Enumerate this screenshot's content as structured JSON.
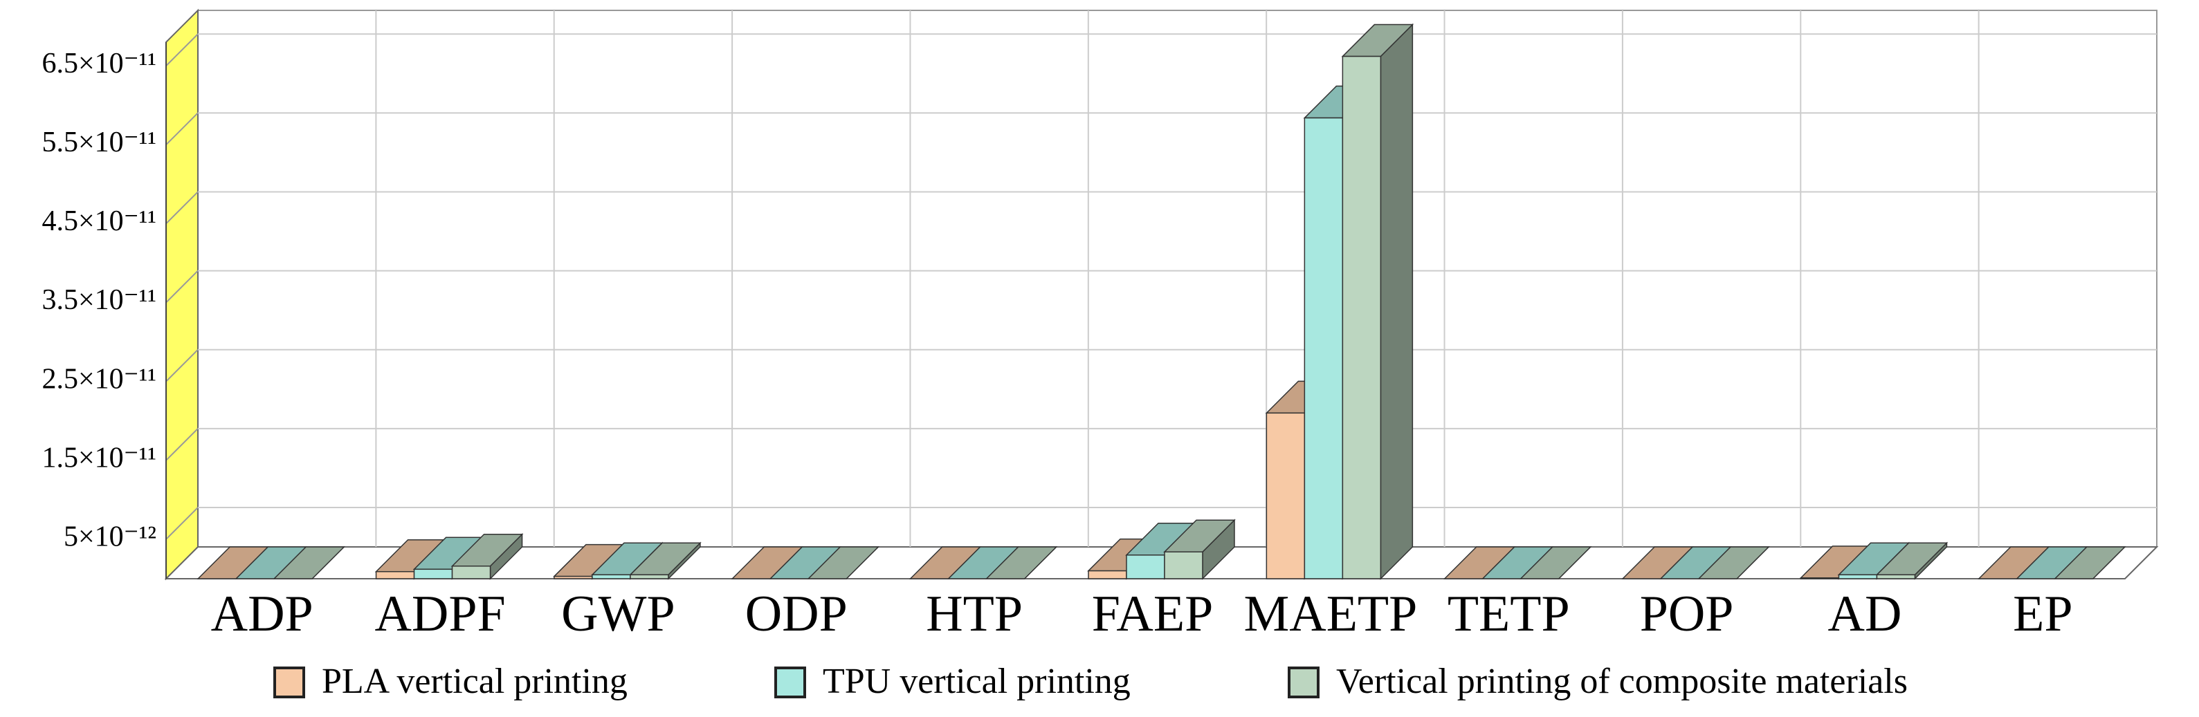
{
  "chart_data": {
    "type": "bar3d",
    "categories": [
      "ADP",
      "ADPF",
      "GWP",
      "ODP",
      "HTP",
      "FAEP",
      "MAETP",
      "TETP",
      "POP",
      "AD",
      "EP"
    ],
    "series": [
      {
        "name": "PLA vertical printing",
        "color": "#f7c9a5",
        "values": [
          0,
          9e-13,
          3e-13,
          0,
          0,
          1e-12,
          2.1e-11,
          0,
          0,
          1e-13,
          0
        ]
      },
      {
        "name": "TPU vertical printing",
        "color": "#a8e8e0",
        "values": [
          0,
          1.2e-12,
          5e-13,
          0,
          0,
          3e-12,
          5.84e-11,
          0,
          0,
          5e-13,
          0
        ]
      },
      {
        "name": "Vertical printing of composite materials",
        "color": "#bcd6c0",
        "values": [
          0,
          1.6e-12,
          5e-13,
          0,
          0,
          3.4e-12,
          6.62e-11,
          0,
          0,
          5e-13,
          0
        ]
      }
    ],
    "ylim": [
      0,
      6.8e-11
    ],
    "yticks": [
      {
        "value": 5e-12,
        "label": "5×10⁻¹²"
      },
      {
        "value": 1.5e-11,
        "label": "1.5×10⁻¹¹"
      },
      {
        "value": 2.5e-11,
        "label": "2.5×10⁻¹¹"
      },
      {
        "value": 3.5e-11,
        "label": "3.5×10⁻¹¹"
      },
      {
        "value": 4.5e-11,
        "label": "4.5×10⁻¹¹"
      },
      {
        "value": 5.5e-11,
        "label": "5.5×10⁻¹¹"
      },
      {
        "value": 6.5e-11,
        "label": "6.5×10⁻¹¹"
      }
    ],
    "grid": true,
    "wall_color": "#ffff66"
  }
}
